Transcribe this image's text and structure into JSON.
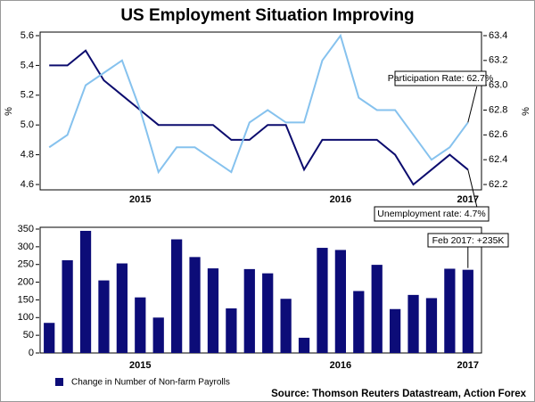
{
  "chart_data": [
    {
      "type": "line",
      "title": "US Employment Situation Improving",
      "categories": [
        null,
        null,
        null,
        null,
        null,
        "2015",
        null,
        null,
        null,
        null,
        null,
        null,
        null,
        null,
        null,
        null,
        "2016",
        null,
        null,
        null,
        null,
        null,
        null,
        "2017"
      ],
      "ylabel": "%",
      "y2label": "%",
      "ylim": [
        4.6,
        5.6
      ],
      "yticks": [
        4.6,
        4.8,
        {
          "value": 5,
          "label": "5.0"
        },
        5.2,
        5.4,
        5.6
      ],
      "y2lim": [
        62.2,
        63.4
      ],
      "y2ticks": [
        62.2,
        62.4,
        62.6,
        62.8,
        {
          "value": 63,
          "label": "63.0"
        },
        63.2,
        63.4
      ],
      "series": [
        {
          "name": "Unemployment rate",
          "color": "#0c0c6e",
          "values": [
            5.4,
            5.4,
            5.5,
            5.3,
            5.2,
            5.1,
            5.0,
            5.0,
            5.0,
            5.0,
            4.9,
            4.9,
            5.0,
            5.0,
            4.7,
            4.9,
            4.9,
            4.9,
            4.9,
            4.8,
            4.6,
            4.7,
            4.8,
            4.7
          ]
        },
        {
          "name": "Participation Rate",
          "color": "#86c2ee",
          "axis": "y2",
          "values": [
            62.5,
            62.6,
            63.0,
            63.1,
            63.2,
            62.8,
            62.3,
            62.5,
            62.5,
            62.4,
            62.3,
            62.7,
            62.8,
            62.7,
            62.7,
            63.2,
            63.4,
            62.9,
            62.8,
            62.8,
            62.6,
            62.4,
            62.5,
            62.7
          ]
        }
      ],
      "annotations": [
        "Participation Rate: 62.7%",
        "Unemployment rate: 4.7%"
      ]
    },
    {
      "type": "bar",
      "categories": [
        null,
        null,
        null,
        null,
        null,
        "2015",
        null,
        null,
        null,
        null,
        null,
        null,
        null,
        null,
        null,
        null,
        "2016",
        null,
        null,
        null,
        null,
        null,
        null,
        "2017"
      ],
      "series": [
        {
          "name": "Change in Number of Non-farm Payrolls",
          "color": "#0c0c78",
          "values": [
            85,
            262,
            345,
            205,
            253,
            157,
            100,
            321,
            271,
            239,
            126,
            237,
            225,
            153,
            43,
            297,
            291,
            175,
            249,
            124,
            164,
            155,
            238,
            235
          ]
        }
      ],
      "ylim": [
        0,
        350
      ],
      "yticks": [
        0,
        50,
        100,
        150,
        200,
        250,
        300,
        350
      ],
      "annotations": [
        "Feb 2017: +235K"
      ],
      "source": "Source: Thomson Reuters Datastream, Action Forex"
    }
  ]
}
